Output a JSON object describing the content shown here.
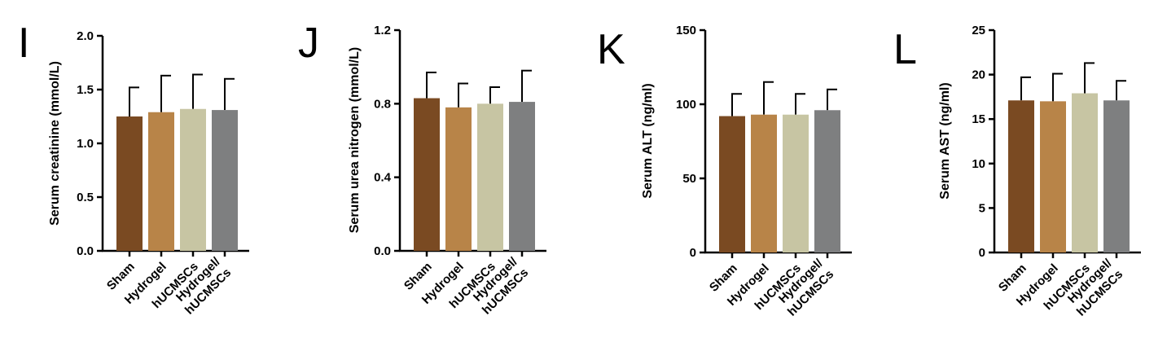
{
  "colors": {
    "sham": "#7a4a22",
    "hydrogel": "#b88448",
    "hucmscs": "#c7c5a3",
    "hydrogel_hucmscs": "#7e7f80",
    "axis": "#000000"
  },
  "chart_data": [
    {
      "type": "bar",
      "panel_label": "I",
      "ylabel": "Serum creatinine (mmol/L)",
      "ylim": [
        0,
        2.0
      ],
      "yticks": [
        "0.0",
        "0.5",
        "1.0",
        "1.5",
        "2.0"
      ],
      "categories": [
        [
          "Sham"
        ],
        [
          "Hydrogel"
        ],
        [
          "hUCMSCs"
        ],
        [
          "Hydrogel/",
          "hUCMSCs"
        ]
      ],
      "values": [
        1.25,
        1.29,
        1.32,
        1.31
      ],
      "errors": [
        0.27,
        0.34,
        0.32,
        0.29
      ]
    },
    {
      "type": "bar",
      "panel_label": "J",
      "ylabel": "Serum urea nitrogen (mmol/L)",
      "ylim": [
        0,
        1.2
      ],
      "yticks": [
        "0.0",
        "0.4",
        "0.8",
        "1.2"
      ],
      "categories": [
        [
          "Sham"
        ],
        [
          "Hydrogel"
        ],
        [
          "hUCMSCs"
        ],
        [
          "Hydrogel/",
          "hUCMSCs"
        ]
      ],
      "values": [
        0.83,
        0.78,
        0.8,
        0.81
      ],
      "errors": [
        0.14,
        0.13,
        0.09,
        0.17
      ]
    },
    {
      "type": "bar",
      "panel_label": "K",
      "ylabel": "Serum ALT (ng/ml)",
      "ylim": [
        0,
        150
      ],
      "yticks": [
        "0",
        "50",
        "100",
        "150"
      ],
      "categories": [
        [
          "Sham"
        ],
        [
          "Hydrogel"
        ],
        [
          "hUCMSCs"
        ],
        [
          "Hydrogel/",
          "hUCMSCs"
        ]
      ],
      "values": [
        92,
        93,
        93,
        96
      ],
      "errors": [
        15,
        22,
        14,
        14
      ]
    },
    {
      "type": "bar",
      "panel_label": "L",
      "ylabel": "Serum AST (ng/ml)",
      "ylim": [
        0,
        25
      ],
      "yticks": [
        "0",
        "5",
        "10",
        "15",
        "20",
        "25"
      ],
      "categories": [
        [
          "Sham"
        ],
        [
          "Hydrogel"
        ],
        [
          "hUCMSCs"
        ],
        [
          "Hydrogel/",
          "hUCMSCs"
        ]
      ],
      "values": [
        17.1,
        17.0,
        17.9,
        17.1
      ],
      "errors": [
        2.6,
        3.1,
        3.4,
        2.2
      ]
    }
  ]
}
